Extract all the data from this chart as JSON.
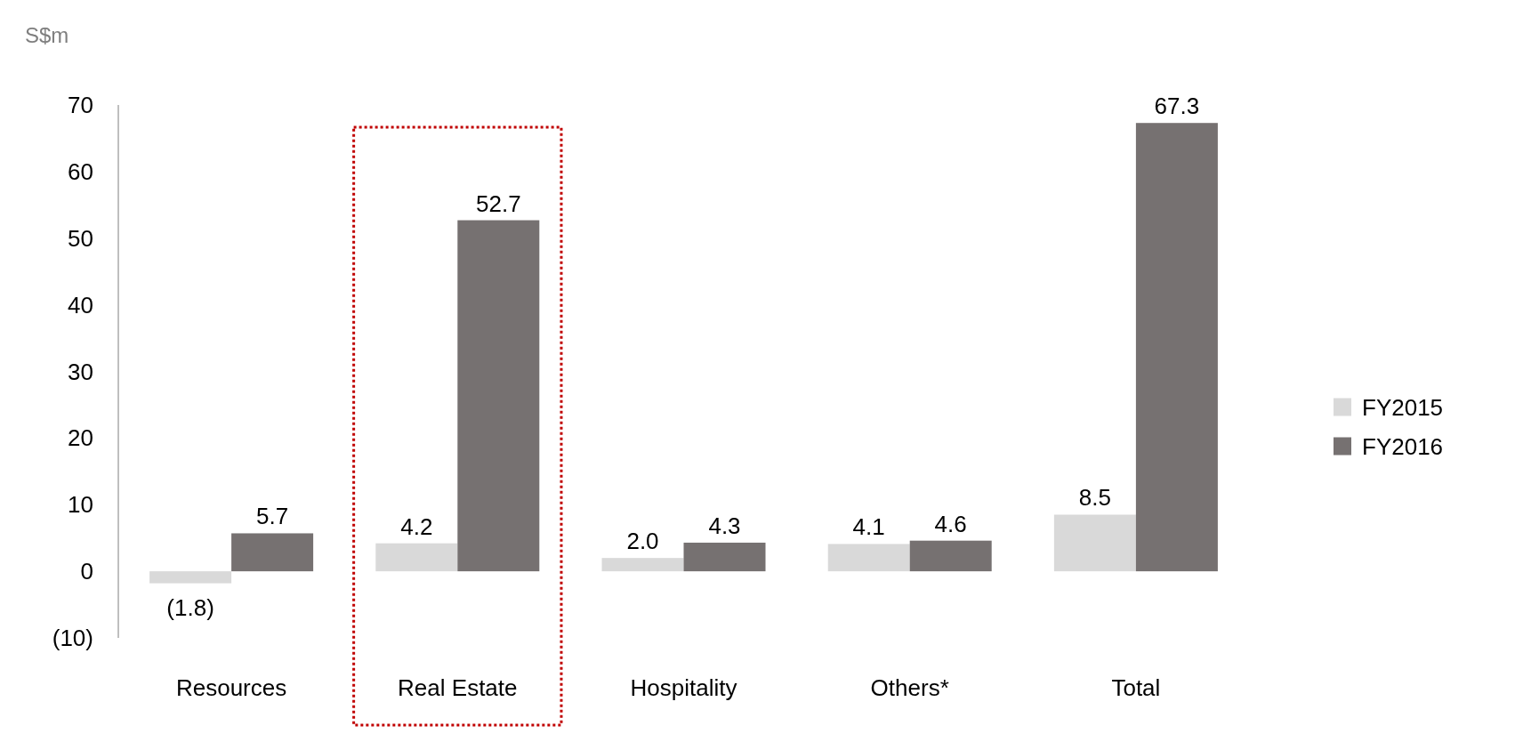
{
  "chart_data": {
    "type": "bar",
    "ylabel": "S$m",
    "categories": [
      "Resources",
      "Real Estate",
      "Hospitality",
      "Others*",
      "Total"
    ],
    "series": [
      {
        "name": "FY2015",
        "color": "#d9d9d9",
        "values": [
          -1.8,
          4.2,
          2.0,
          4.1,
          8.5
        ],
        "value_labels": [
          "(1.8)",
          "4.2",
          "2.0",
          "4.1",
          "8.5"
        ]
      },
      {
        "name": "FY2016",
        "color": "#767171",
        "values": [
          5.7,
          52.7,
          4.3,
          4.6,
          67.3
        ],
        "value_labels": [
          "5.7",
          "52.7",
          "4.3",
          "4.6",
          "67.3"
        ]
      }
    ],
    "ylim": [
      -10,
      70
    ],
    "yticks": [
      {
        "value": -10,
        "label": "(10)"
      },
      0,
      10,
      20,
      30,
      40,
      50,
      60,
      70
    ],
    "grid": false,
    "legend": "right"
  }
}
